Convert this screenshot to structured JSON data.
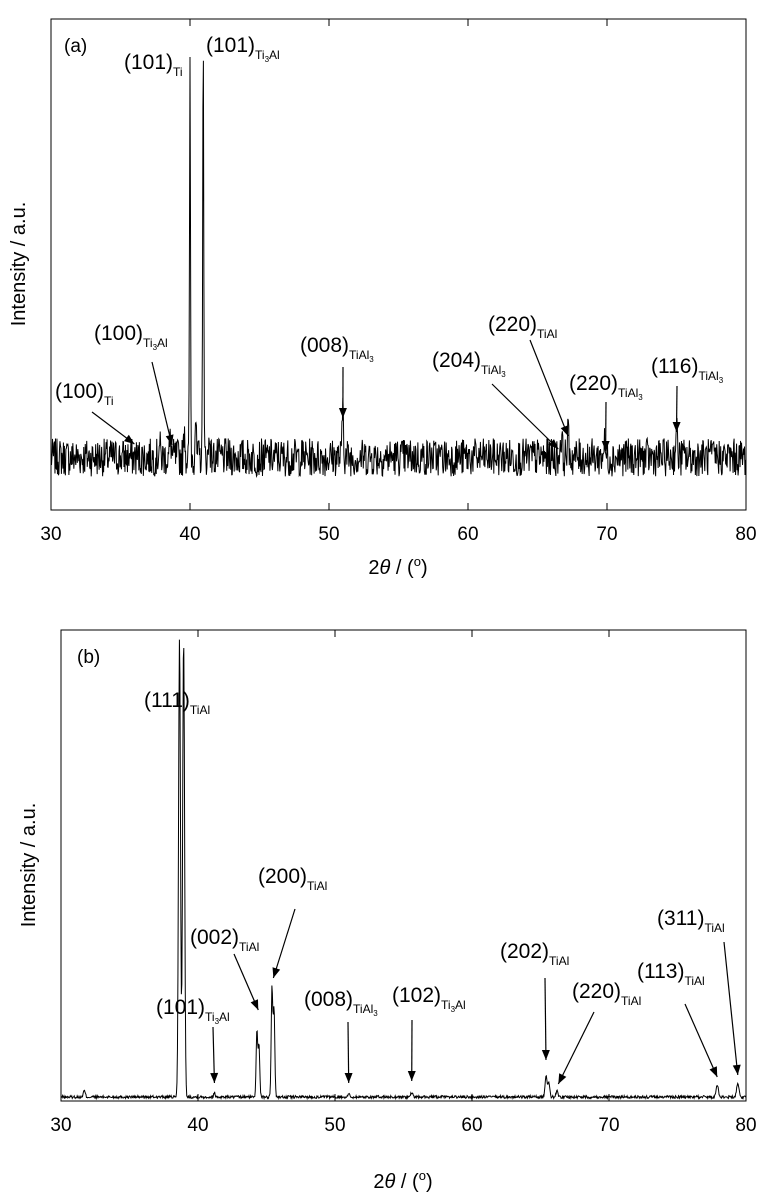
{
  "chart_data": [
    {
      "type": "line",
      "panel_label": "(a)",
      "xlabel": "2θ / (°)",
      "ylabel": "Intensity / a.u.",
      "xlim": [
        30,
        80
      ],
      "xticks": [
        "30",
        "40",
        "50",
        "60",
        "70",
        "80"
      ],
      "grid": false,
      "legend": "none",
      "series": [
        {
          "peaks": [
            {
              "x": 37.8,
              "h": 0.03,
              "w": 0.08
            },
            {
              "x": 38.6,
              "h": 0.04,
              "w": 0.08
            },
            {
              "x": 39.6,
              "h": 0.08,
              "w": 0.06
            },
            {
              "x": 40.0,
              "h": 0.92,
              "w": 0.05
            },
            {
              "x": 40.4,
              "h": 0.1,
              "w": 0.06
            },
            {
              "x": 40.95,
              "h": 1.05,
              "w": 0.05
            },
            {
              "x": 41.4,
              "h": 0.06,
              "w": 0.06
            },
            {
              "x": 51.0,
              "h": 0.13,
              "w": 0.07
            },
            {
              "x": 66.7,
              "h": 0.05,
              "w": 0.1
            },
            {
              "x": 67.2,
              "h": 0.05,
              "w": 0.1
            },
            {
              "x": 69.8,
              "h": 0.03,
              "w": 0.1
            },
            {
              "x": 75.0,
              "h": 0.06,
              "w": 0.1
            }
          ],
          "noise": 0.045,
          "baseline": 0.03
        }
      ],
      "annotations": [
        {
          "text": "(101)",
          "sub": "Ti",
          "arrow_to": null
        },
        {
          "text": "(101)",
          "sub": "Ti",
          "sub2": "3",
          "sub_tail": "Al",
          "arrow_to": null
        },
        {
          "text": "(100)",
          "sub": "Ti",
          "sub2": "3",
          "sub_tail": "Al",
          "arrow_to": 38.7
        },
        {
          "text": "(100)",
          "sub": "Ti",
          "arrow_to": 36.0
        },
        {
          "text": "(008)",
          "sub": "TiAl",
          "sub2": "3",
          "arrow_to": 51.0
        },
        {
          "text": "(220)",
          "sub": "TiAl",
          "arrow_to": 67.2
        },
        {
          "text": "(204)",
          "sub": "TiAl",
          "sub2": "3",
          "arrow_to": 66.5
        },
        {
          "text": "(220)",
          "sub": "TiAl",
          "sub2": "3",
          "arrow_to": 69.9
        },
        {
          "text": "(116)",
          "sub": "TiAl",
          "sub2": "3",
          "arrow_to": 75.0
        }
      ]
    },
    {
      "type": "line",
      "panel_label": "(b)",
      "xlabel": "2θ / (°)",
      "ylabel": "Intensity / a.u.",
      "xlim": [
        30,
        80
      ],
      "xticks": [
        "30",
        "40",
        "50",
        "60",
        "70",
        "80"
      ],
      "grid": false,
      "legend": "none",
      "series": [
        {
          "peaks": [
            {
              "x": 31.7,
              "h": 0.018,
              "w": 0.1
            },
            {
              "x": 38.65,
              "h": 1.3,
              "w": 0.1
            },
            {
              "x": 38.95,
              "h": 1.3,
              "w": 0.1
            },
            {
              "x": 41.2,
              "h": 0.012,
              "w": 0.08
            },
            {
              "x": 44.3,
              "h": 0.19,
              "w": 0.08
            },
            {
              "x": 44.45,
              "h": 0.15,
              "w": 0.08
            },
            {
              "x": 45.4,
              "h": 0.31,
              "w": 0.08
            },
            {
              "x": 45.55,
              "h": 0.25,
              "w": 0.08
            },
            {
              "x": 51.0,
              "h": 0.008,
              "w": 0.1
            },
            {
              "x": 55.6,
              "h": 0.012,
              "w": 0.1
            },
            {
              "x": 65.4,
              "h": 0.06,
              "w": 0.1
            },
            {
              "x": 65.6,
              "h": 0.045,
              "w": 0.1
            },
            {
              "x": 66.2,
              "h": 0.018,
              "w": 0.1
            },
            {
              "x": 77.9,
              "h": 0.035,
              "w": 0.12
            },
            {
              "x": 79.4,
              "h": 0.04,
              "w": 0.12
            }
          ],
          "noise": 0.004,
          "baseline": 0.0
        }
      ],
      "annotations": [
        {
          "text": "(111)",
          "sub": "TiAl",
          "arrow_to": null
        },
        {
          "text": "(200)",
          "sub": "TiAl",
          "arrow_to": 45.5
        },
        {
          "text": "(002)",
          "sub": "TiAl",
          "arrow_to": 44.4
        },
        {
          "text": "(101)",
          "sub": "Ti",
          "sub2": "3",
          "sub_tail": "Al",
          "arrow_to": 41.2
        },
        {
          "text": "(008)",
          "sub": "TiAl",
          "sub2": "3",
          "arrow_to": 51.0
        },
        {
          "text": "(102)",
          "sub": "Ti",
          "sub2": "3",
          "sub_tail": "Al",
          "arrow_to": 55.6
        },
        {
          "text": "(202)",
          "sub": "TiAl",
          "arrow_to": 65.4
        },
        {
          "text": "(220)",
          "sub": "TiAl",
          "arrow_to": 66.3
        },
        {
          "text": "(113)",
          "sub": "TiAl",
          "arrow_to": 77.9
        },
        {
          "text": "(311)",
          "sub": "TiAl",
          "arrow_to": 79.4
        }
      ]
    }
  ]
}
